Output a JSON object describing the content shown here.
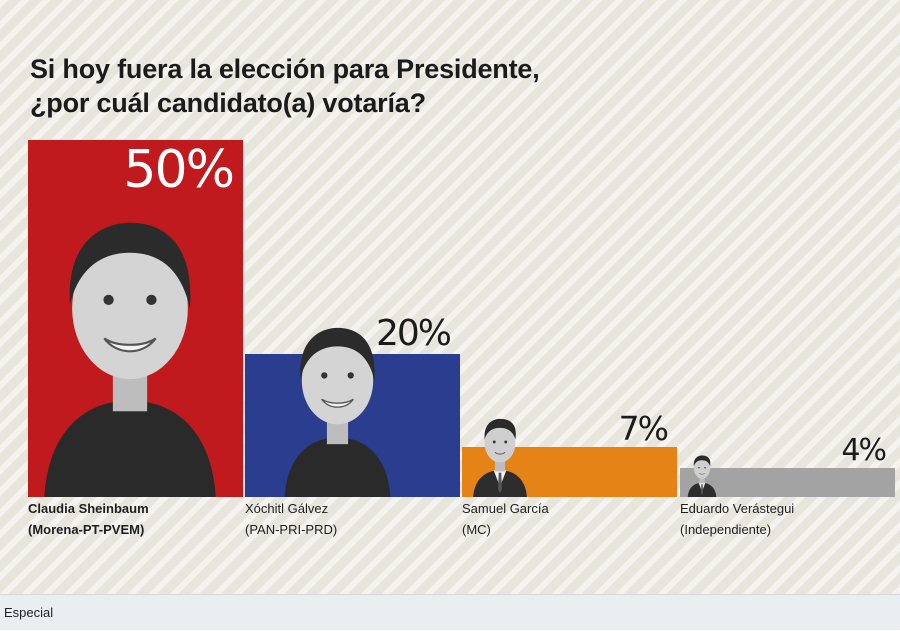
{
  "chart_data": {
    "type": "bar",
    "title": "Si hoy fuera la elección para Presidente,",
    "subtitle": "¿por cuál candidato(a) votaría?",
    "categories": [
      "Claudia Sheinbaum",
      "Xóchitl Gálvez",
      "Samuel García",
      "Eduardo Verástegui"
    ],
    "parties": [
      "(Morena-PT-PVEM)",
      "(PAN-PRI-PRD)",
      "(MC)",
      "(Independiente)"
    ],
    "values": [
      50,
      20,
      7,
      4
    ],
    "value_labels": [
      "50%",
      "20%",
      "7%",
      "4%"
    ],
    "colors": [
      "#c0191e",
      "#2b3d8f",
      "#e58317",
      "#a3a3a3"
    ],
    "ylim": [
      0,
      50
    ],
    "grid": false,
    "legend": "none"
  },
  "photos": [
    "woman-portrait",
    "woman-portrait",
    "man-portrait",
    "man-portrait"
  ],
  "footer": {
    "caption": "Especial"
  }
}
